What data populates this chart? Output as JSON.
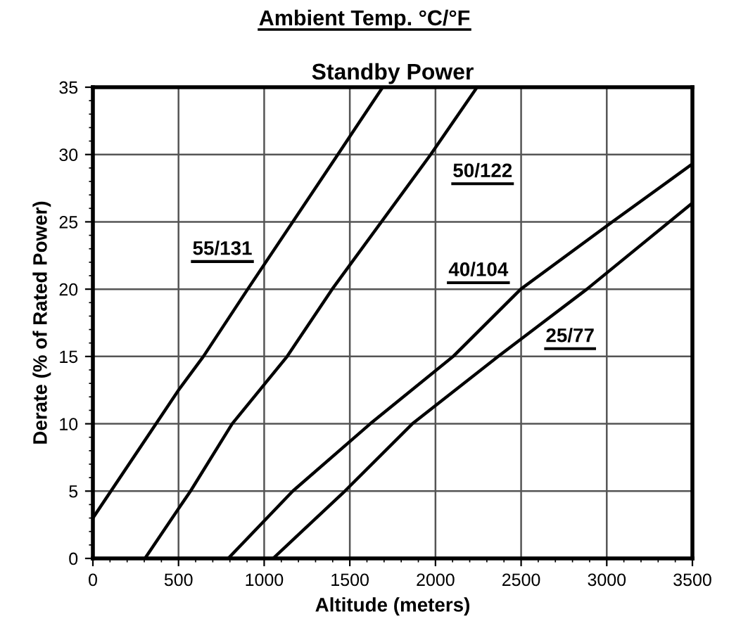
{
  "chart_data": {
    "type": "line",
    "title": "Ambient Temp. °C/°F",
    "subtitle": "Standby Power",
    "xlabel": "Altitude (meters)",
    "ylabel": "Derate (% of Rated Power)",
    "series": [
      {
        "name": "55/131",
        "color": "#000000",
        "x": [
          0,
          500,
          645,
          904,
          1430,
          1692
        ],
        "values": [
          3,
          12.5,
          15,
          20,
          30,
          35
        ]
      },
      {
        "name": "50/122",
        "color": "#000000",
        "x": [
          304,
          500,
          570,
          813,
          1134,
          1397,
          1972,
          2243
        ],
        "values": [
          0,
          3.7,
          5,
          10,
          15,
          20,
          30,
          35
        ]
      },
      {
        "name": "40/104",
        "color": "#000000",
        "x": [
          790,
          1167,
          1619,
          2103,
          2498,
          3032,
          3500
        ],
        "values": [
          0,
          5,
          10,
          15,
          20,
          25,
          29.3
        ]
      },
      {
        "name": "25/77",
        "color": "#000000",
        "x": [
          1052,
          1471,
          1865,
          2366,
          2884,
          3500
        ],
        "values": [
          0,
          5,
          10,
          15,
          20,
          26.4
        ]
      }
    ],
    "xlim": [
      0,
      3500
    ],
    "xticks": [
      0,
      500,
      1000,
      1500,
      2000,
      2500,
      3000,
      3500
    ],
    "ylim": [
      0,
      35
    ],
    "yticks": [
      0,
      5,
      10,
      15,
      20,
      25,
      30,
      35
    ],
    "grid": true,
    "marker": "none",
    "line_style": "solid"
  }
}
